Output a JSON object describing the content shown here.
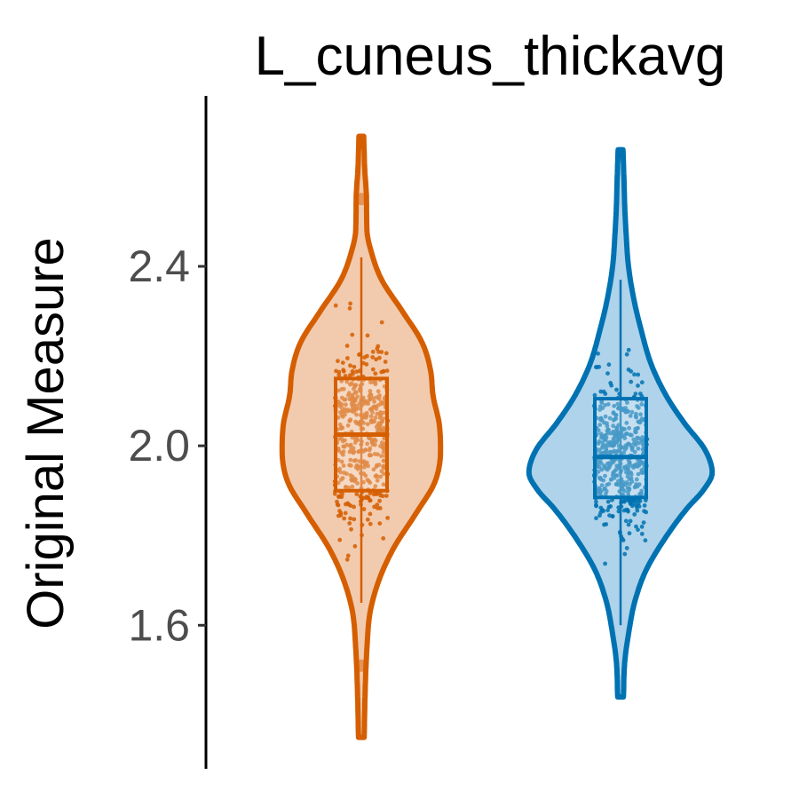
{
  "chart_data": {
    "type": "violin",
    "title": "L_cuneus_thickavg",
    "xlabel": "",
    "ylabel": "Original Measure",
    "ylim": [
      1.28,
      2.78
    ],
    "yticks": [
      {
        "value": 1.6,
        "label": "1.6"
      },
      {
        "value": 2.0,
        "label": "2.0"
      },
      {
        "value": 2.4,
        "label": "2.4"
      }
    ],
    "grid": false,
    "legend": "none",
    "groups": [
      {
        "color": "#D55E00",
        "fill": "#F2CBAE",
        "min": 1.35,
        "max": 2.69,
        "q1": 1.9,
        "median": 2.025,
        "q3": 2.15,
        "whisker_low": 1.65,
        "whisker_high": 2.42,
        "outliers": [
          2.55,
          1.51
        ],
        "points_low": 1.66,
        "points_high": 2.46,
        "density": [
          [
            1.35,
            0.2
          ],
          [
            1.45,
            0.4
          ],
          [
            1.55,
            0.8
          ],
          [
            1.63,
            1.5
          ],
          [
            1.7,
            3.4
          ],
          [
            1.77,
            6.5
          ],
          [
            1.85,
            11.5
          ],
          [
            1.92,
            15.6
          ],
          [
            1.99,
            16.8
          ],
          [
            2.05,
            16.5
          ],
          [
            2.11,
            15.2
          ],
          [
            2.17,
            14.6
          ],
          [
            2.23,
            12.8
          ],
          [
            2.3,
            8.5
          ],
          [
            2.37,
            4.0
          ],
          [
            2.43,
            1.8
          ],
          [
            2.48,
            0.8
          ],
          [
            2.55,
            0.7
          ],
          [
            2.62,
            0.3
          ],
          [
            2.69,
            0.1
          ]
        ]
      },
      {
        "color": "#0072B2",
        "fill": "#AFD3EA",
        "min": 1.44,
        "max": 2.66,
        "q1": 1.885,
        "median": 1.975,
        "q3": 2.105,
        "whisker_low": 1.6,
        "whisker_high": 2.37,
        "outliers": [],
        "points_low": 1.57,
        "points_high": 2.53,
        "density": [
          [
            1.44,
            0.2
          ],
          [
            1.52,
            0.5
          ],
          [
            1.58,
            1.3
          ],
          [
            1.65,
            2.6
          ],
          [
            1.72,
            5.0
          ],
          [
            1.79,
            9.0
          ],
          [
            1.86,
            14.0
          ],
          [
            1.9,
            17.5
          ],
          [
            1.94,
            19.5
          ],
          [
            1.99,
            18.0
          ],
          [
            2.05,
            13.5
          ],
          [
            2.11,
            9.6
          ],
          [
            2.18,
            6.3
          ],
          [
            2.26,
            4.0
          ],
          [
            2.33,
            2.4
          ],
          [
            2.4,
            1.3
          ],
          [
            2.47,
            0.8
          ],
          [
            2.53,
            0.5
          ],
          [
            2.6,
            0.3
          ],
          [
            2.66,
            0.1
          ]
        ]
      }
    ]
  }
}
